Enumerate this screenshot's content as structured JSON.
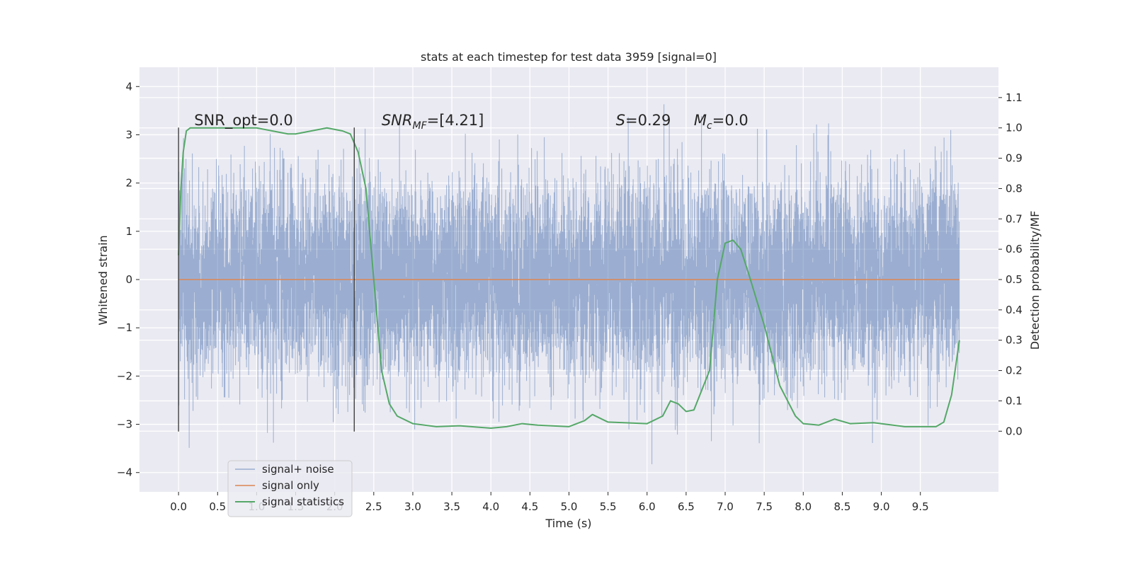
{
  "chart_data": {
    "type": "line",
    "title": "stats at each timestep for test data 3959 [signal=0]",
    "xlabel": "Time (s)",
    "ylabel": "Whitened strain",
    "ylabel_right": "Detection probability/MF",
    "xlim": [
      -0.5,
      10.5
    ],
    "ylim": [
      -4.4,
      4.4
    ],
    "ylim_right": [
      -0.2,
      1.2
    ],
    "x_ticks": [
      0.0,
      0.5,
      1.0,
      1.5,
      2.0,
      2.5,
      3.0,
      3.5,
      4.0,
      4.5,
      5.0,
      5.5,
      6.0,
      6.5,
      7.0,
      7.5,
      8.0,
      8.5,
      9.0,
      9.5
    ],
    "x_tick_labels": [
      "0.0",
      "0.5",
      "1.0",
      "1.5",
      "2.0",
      "2.5",
      "3.0",
      "3.5",
      "4.0",
      "4.5",
      "5.0",
      "5.5",
      "6.0",
      "6.5",
      "7.0",
      "7.5",
      "8.0",
      "8.5",
      "9.0",
      "9.5"
    ],
    "y_ticks": [
      -4,
      -3,
      -2,
      -1,
      0,
      1,
      2,
      3,
      4
    ],
    "y_tick_labels": [
      "−4",
      "−3",
      "−2",
      "−1",
      "0",
      "1",
      "2",
      "3",
      "4"
    ],
    "y_ticks_right": [
      0.0,
      0.1,
      0.2,
      0.3,
      0.4,
      0.5,
      0.6,
      0.7,
      0.8,
      0.9,
      1.0,
      1.1
    ],
    "y_tick_labels_right": [
      "0.0",
      "0.1",
      "0.2",
      "0.3",
      "0.4",
      "0.5",
      "0.6",
      "0.7",
      "0.8",
      "0.9",
      "1.0",
      "1.1"
    ],
    "grid": true,
    "legend_position": "lower-left",
    "annotations": [
      {
        "type": "text",
        "text": "SNR_opt=0.0",
        "x": 0.2,
        "y": 3.2
      },
      {
        "type": "math",
        "main": "SNR",
        "sub": "MF",
        "rest": "=[4.21]",
        "x": 2.6,
        "y": 3.2
      },
      {
        "type": "math",
        "main": "S",
        "sub": "",
        "rest": "=0.29",
        "x": 5.6,
        "y": 3.2
      },
      {
        "type": "math",
        "main": "M",
        "sub": "c",
        "rest": "=0.0",
        "x": 6.6,
        "y": 3.2
      }
    ],
    "vlines": [
      {
        "x": 0.0,
        "ymin": -3.15,
        "ymax": 3.15,
        "color": "#333333"
      },
      {
        "x": 2.25,
        "ymin": -3.15,
        "ymax": 3.15,
        "color": "#333333"
      }
    ],
    "series": [
      {
        "name": "signal+ noise",
        "axis": "left",
        "color": "#4c72b0",
        "alpha": 0.5,
        "kind": "noise",
        "t_start": 0.0,
        "t_end": 10.0,
        "sigma": 1.0,
        "seed": 3959
      },
      {
        "name": "signal only",
        "axis": "left",
        "color": "#dd8452",
        "x": [
          0.0,
          10.0
        ],
        "y": [
          0.0,
          0.0
        ]
      },
      {
        "name": "signal statistics",
        "axis": "right",
        "color": "#55a868",
        "x": [
          0.0,
          0.03,
          0.06,
          0.1,
          0.15,
          0.2,
          0.3,
          0.5,
          0.8,
          1.0,
          1.2,
          1.4,
          1.5,
          1.7,
          1.9,
          2.1,
          2.2,
          2.3,
          2.4,
          2.5,
          2.6,
          2.7,
          2.8,
          3.0,
          3.3,
          3.6,
          4.0,
          4.2,
          4.4,
          4.6,
          5.0,
          5.2,
          5.3,
          5.5,
          6.0,
          6.2,
          6.3,
          6.4,
          6.5,
          6.6,
          6.8,
          6.9,
          7.0,
          7.1,
          7.2,
          7.3,
          7.5,
          7.7,
          7.9,
          8.0,
          8.2,
          8.4,
          8.6,
          8.9,
          9.3,
          9.7,
          9.8,
          9.9,
          10.0
        ],
        "y": [
          0.58,
          0.8,
          0.92,
          0.99,
          1.0,
          1.0,
          1.0,
          1.0,
          1.0,
          1.0,
          0.99,
          0.98,
          0.98,
          0.99,
          1.0,
          0.99,
          0.98,
          0.92,
          0.8,
          0.5,
          0.2,
          0.09,
          0.05,
          0.025,
          0.015,
          0.018,
          0.01,
          0.015,
          0.025,
          0.02,
          0.015,
          0.035,
          0.055,
          0.03,
          0.025,
          0.05,
          0.1,
          0.09,
          0.065,
          0.07,
          0.2,
          0.5,
          0.62,
          0.63,
          0.6,
          0.52,
          0.35,
          0.15,
          0.05,
          0.025,
          0.02,
          0.04,
          0.025,
          0.028,
          0.015,
          0.015,
          0.03,
          0.12,
          0.3
        ]
      }
    ]
  }
}
